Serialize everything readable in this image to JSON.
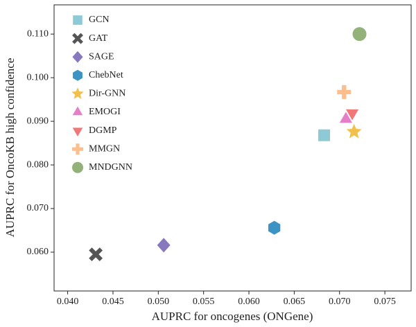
{
  "chart_data": {
    "type": "scatter",
    "x_label": "AUPRC for oncogenes (ONGene)",
    "y_label": "AUPRC for OncoKB high confidence",
    "xlim": [
      0.0385,
      0.0779
    ],
    "ylim": [
      0.0511,
      0.1167
    ],
    "xticks": [
      {
        "value": 0.04,
        "label": "0.040"
      },
      {
        "value": 0.045,
        "label": "0.045"
      },
      {
        "value": 0.05,
        "label": "0.050"
      },
      {
        "value": 0.055,
        "label": "0.055"
      },
      {
        "value": 0.06,
        "label": "0.060"
      },
      {
        "value": 0.065,
        "label": "0.065"
      },
      {
        "value": 0.07,
        "label": "0.070"
      },
      {
        "value": 0.075,
        "label": "0.075"
      }
    ],
    "yticks": [
      {
        "value": 0.06,
        "label": "0.060"
      },
      {
        "value": 0.07,
        "label": "0.070"
      },
      {
        "value": 0.08,
        "label": "0.080"
      },
      {
        "value": 0.09,
        "label": "0.090"
      },
      {
        "value": 0.1,
        "label": "0.100"
      },
      {
        "value": 0.11,
        "label": "0.110"
      }
    ],
    "legend": "upper left",
    "series": [
      {
        "name": "GCN",
        "color": "#8ecad6",
        "marker": "square",
        "x": [
          0.0683
        ],
        "values": [
          0.0868
        ]
      },
      {
        "name": "GAT",
        "color": "#555555",
        "marker": "cross",
        "x": [
          0.0431
        ],
        "values": [
          0.0595
        ]
      },
      {
        "name": "SAGE",
        "color": "#8878bd",
        "marker": "diamond",
        "x": [
          0.0506
        ],
        "values": [
          0.0616
        ]
      },
      {
        "name": "ChebNet",
        "color": "#3d93c3",
        "marker": "hexagon",
        "x": [
          0.0628
        ],
        "values": [
          0.0656
        ]
      },
      {
        "name": "Dir-GNN",
        "color": "#f2c04c",
        "marker": "star",
        "x": [
          0.0716
        ],
        "values": [
          0.0876
        ]
      },
      {
        "name": "EMOGI",
        "color": "#e47fc8",
        "marker": "triangle-up",
        "x": [
          0.0707
        ],
        "values": [
          0.0905
        ]
      },
      {
        "name": "DGMP",
        "color": "#f07878",
        "marker": "triangle-down",
        "x": [
          0.0714
        ],
        "values": [
          0.0919
        ]
      },
      {
        "name": "MMGN",
        "color": "#fbbe8c",
        "marker": "plus",
        "x": [
          0.0705
        ],
        "values": [
          0.0967
        ]
      },
      {
        "name": "MNDGNN",
        "color": "#93b27a",
        "marker": "circle",
        "x": [
          0.0722
        ],
        "values": [
          0.11
        ]
      }
    ]
  }
}
